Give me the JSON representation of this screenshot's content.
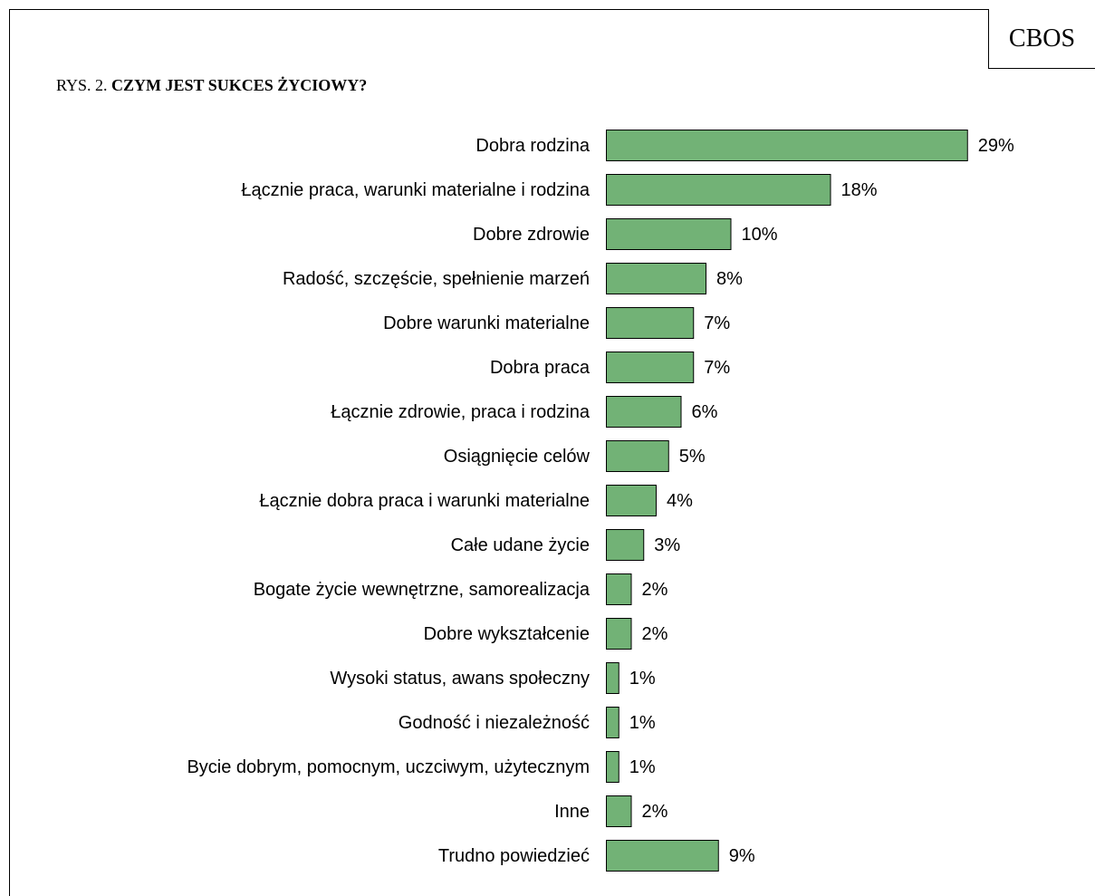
{
  "badge": "CBOS",
  "figure": {
    "prefix": "RYS. 2.",
    "title": "CZYM JEST SUKCES ŻYCIOWY?"
  },
  "colors": {
    "bar_fill": "#72b276",
    "bar_stroke": "#000000"
  },
  "chart_data": {
    "type": "bar",
    "orientation": "horizontal",
    "title": "CZYM JEST SUKCES ŻYCIOWY?",
    "value_suffix": "%",
    "xlim": [
      0,
      29
    ],
    "grid": false,
    "legend": "none",
    "categories": [
      "Dobra rodzina",
      "Łącznie praca, warunki materialne i rodzina",
      "Dobre zdrowie",
      "Radość, szczęście, spełnienie marzeń",
      "Dobre warunki materialne",
      "Dobra praca",
      "Łącznie zdrowie, praca i rodzina",
      "Osiągnięcie celów",
      "Łącznie dobra praca i warunki materialne",
      "Całe udane życie",
      "Bogate życie wewnętrzne, samorealizacja",
      "Dobre wykształcenie",
      "Wysoki status, awans społeczny",
      "Godność i niezależność",
      "Bycie dobrym, pomocnym, uczciwym, użytecznym",
      "Inne",
      "Trudno powiedzieć"
    ],
    "values": [
      29,
      18,
      10,
      8,
      7,
      7,
      6,
      5,
      4,
      3,
      2,
      2,
      1,
      1,
      1,
      2,
      9
    ]
  }
}
